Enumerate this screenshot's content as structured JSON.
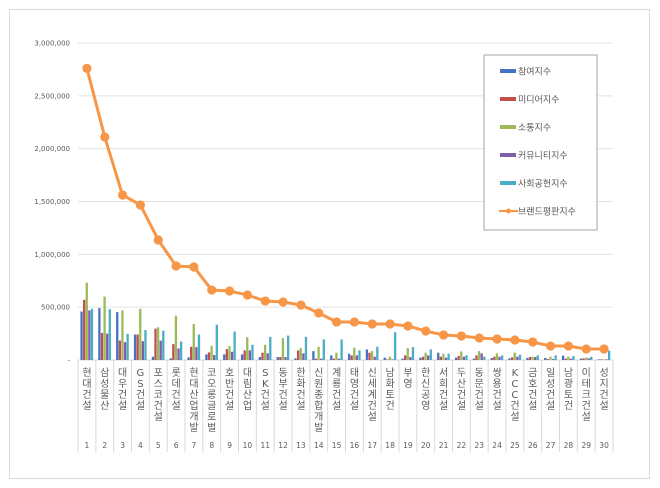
{
  "chart_data": {
    "type": "bar",
    "title": "",
    "xlabel": "",
    "ylabel": "",
    "ylim": [
      0,
      3000000
    ],
    "yticks": [
      "-",
      "500,000",
      "1,000,000",
      "1,500,000",
      "2,000,000",
      "2,500,000",
      "3,000,000"
    ],
    "grid": true,
    "legend_position": "top-right",
    "categories": [
      "현대건설",
      "삼성물산",
      "대우건설",
      "GS건설",
      "포스코건설",
      "롯데건설",
      "현대산업개발",
      "코오롱글로벌",
      "호반건설",
      "대림산업",
      "SK건설",
      "동부건설",
      "한화건설",
      "신원종합개발",
      "계룡건설",
      "태영건설",
      "신세계건설",
      "남화토건",
      "부영",
      "한신공영",
      "서희건설",
      "두산건설",
      "동문건설",
      "쌍용건설",
      "KCC건설",
      "금호건설",
      "일성건설",
      "남광토건",
      "이테크건설",
      "성지건설"
    ],
    "ranks": [
      "1",
      "2",
      "3",
      "4",
      "5",
      "6",
      "7",
      "8",
      "9",
      "10",
      "11",
      "12",
      "13",
      "14",
      "15",
      "16",
      "17",
      "18",
      "19",
      "20",
      "21",
      "22",
      "23",
      "24",
      "25",
      "26",
      "27",
      "28",
      "29",
      "30"
    ],
    "series": [
      {
        "name": "참여지수",
        "type": "bar",
        "color": "#4472c4",
        "values": [
          459000,
          491000,
          453000,
          241000,
          31000,
          16000,
          25000,
          53000,
          53000,
          53000,
          28000,
          28000,
          16000,
          84000,
          44000,
          59000,
          100000,
          22000,
          13000,
          22000,
          69000,
          22000,
          13000,
          19000,
          16000,
          19000,
          19000,
          41000,
          13000,
          6000
        ]
      },
      {
        "name": "미디어지수",
        "type": "bar",
        "color": "#c0504d",
        "values": [
          569000,
          256000,
          184000,
          241000,
          297000,
          150000,
          125000,
          72000,
          103000,
          91000,
          69000,
          28000,
          91000,
          13000,
          13000,
          44000,
          69000,
          6000,
          44000,
          31000,
          31000,
          38000,
          44000,
          31000,
          25000,
          28000,
          9000,
          13000,
          16000,
          6000
        ]
      },
      {
        "name": "소통지수",
        "type": "bar",
        "color": "#9bbb59",
        "values": [
          731000,
          600000,
          469000,
          484000,
          309000,
          419000,
          341000,
          134000,
          131000,
          216000,
          144000,
          206000,
          113000,
          125000,
          69000,
          116000,
          84000,
          31000,
          113000,
          69000,
          59000,
          81000,
          84000,
          63000,
          69000,
          31000,
          31000,
          31000,
          22000,
          6000
        ]
      },
      {
        "name": "커뮤니티지수",
        "type": "bar",
        "color": "#7f5fa8",
        "values": [
          469000,
          250000,
          169000,
          178000,
          184000,
          109000,
          122000,
          47000,
          78000,
          91000,
          63000,
          28000,
          63000,
          13000,
          13000,
          44000,
          31000,
          6000,
          28000,
          44000,
          22000,
          31000,
          63000,
          31000,
          31000,
          28000,
          9000,
          13000,
          16000,
          6000
        ]
      },
      {
        "name": "사회공헌지수",
        "type": "bar",
        "color": "#4bacc6",
        "values": [
          484000,
          481000,
          247000,
          284000,
          278000,
          175000,
          241000,
          334000,
          269000,
          144000,
          219000,
          231000,
          219000,
          194000,
          194000,
          91000,
          125000,
          263000,
          122000,
          100000,
          59000,
          44000,
          31000,
          44000,
          50000,
          44000,
          44000,
          38000,
          31000,
          88000
        ]
      },
      {
        "name": "브랜드평판지수",
        "type": "line",
        "color": "#f79646",
        "values": [
          2760000,
          2110000,
          1561000,
          1467000,
          1136000,
          890000,
          880000,
          662000,
          653000,
          615000,
          558000,
          549000,
          520000,
          445000,
          360000,
          360000,
          341000,
          341000,
          322000,
          274000,
          237000,
          227000,
          208000,
          199000,
          189000,
          170000,
          132000,
          132000,
          104000,
          104000
        ]
      }
    ]
  }
}
